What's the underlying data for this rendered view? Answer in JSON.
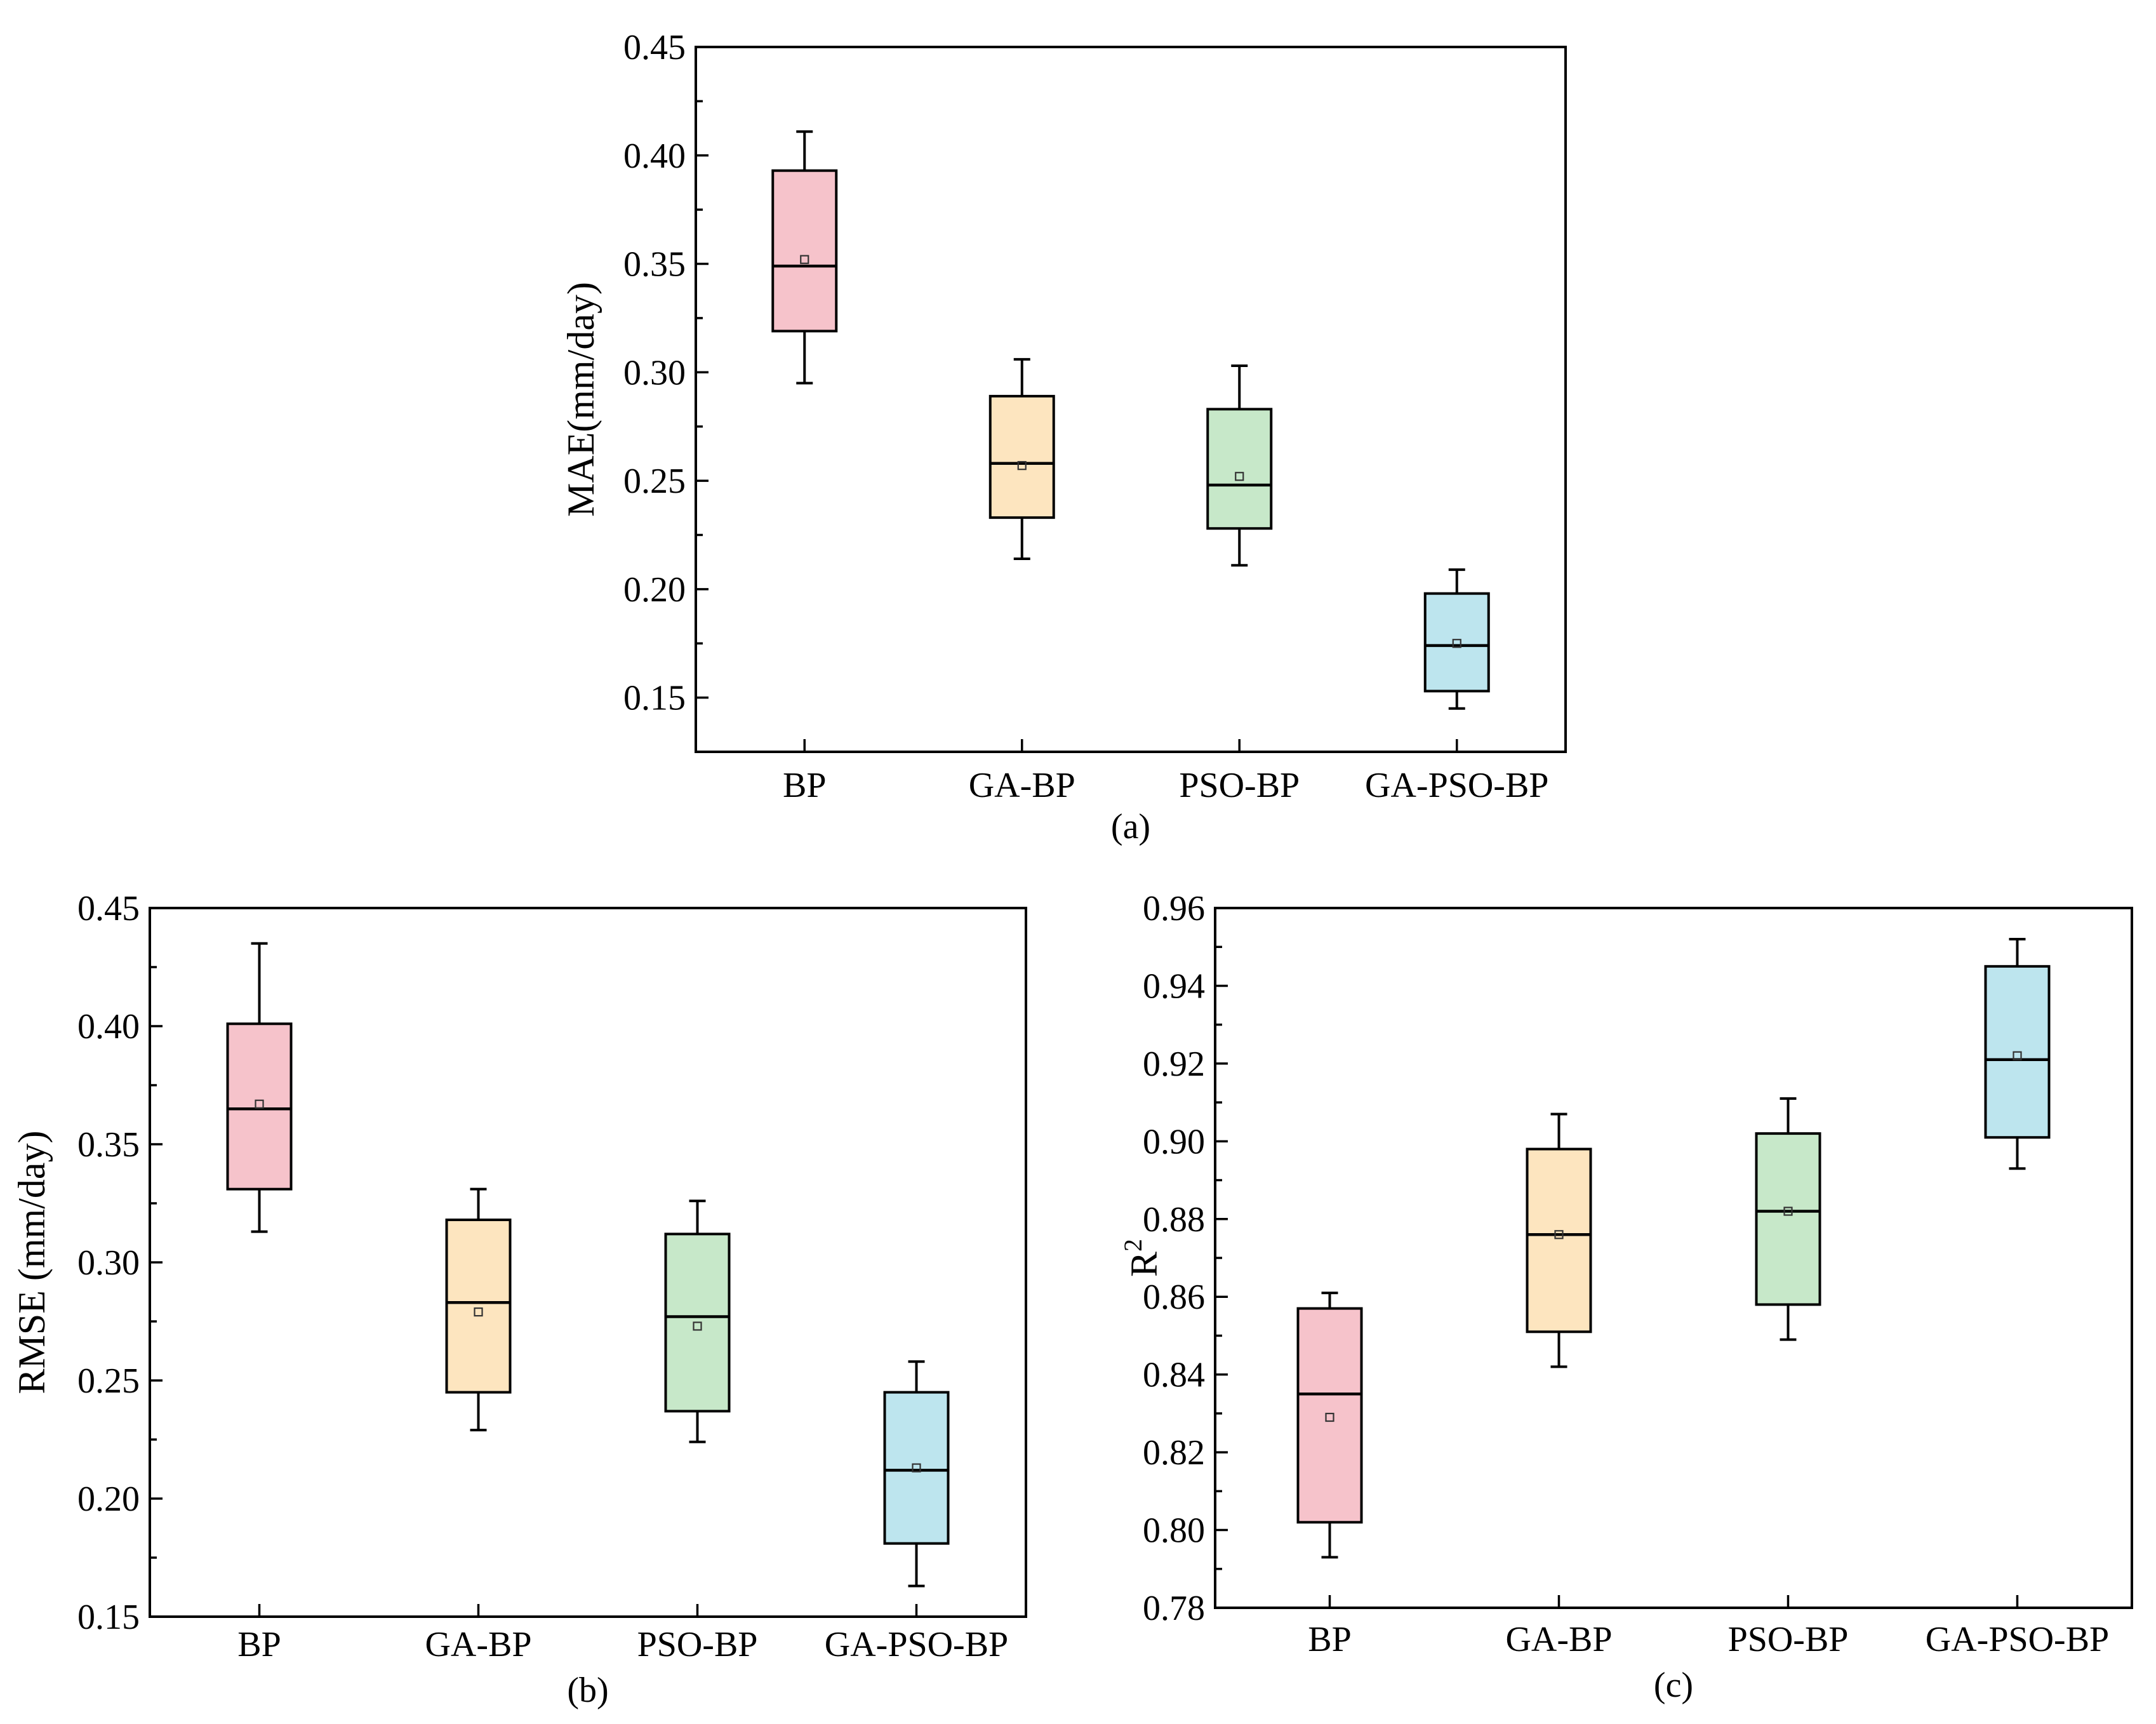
{
  "colors": {
    "BP": "#f6c3cb",
    "GA-BP": "#fde5bf",
    "PSO-BP": "#c7e8c9",
    "GA-PSO-BP": "#bde5ee"
  },
  "chart_data": [
    {
      "type": "box",
      "caption": "(a)",
      "ylabel": "MAE(mm/day)",
      "ylim": [
        0.125,
        0.45
      ],
      "yticks": [
        0.15,
        0.2,
        0.25,
        0.3,
        0.35,
        0.4,
        0.45
      ],
      "ytick_labels": [
        "0.15",
        "0.20",
        "0.25",
        "0.30",
        "0.35",
        "0.40",
        "0.45"
      ],
      "categories": [
        "BP",
        "GA-BP",
        "PSO-BP",
        "GA-PSO-BP"
      ],
      "boxes": [
        {
          "whisker_low": 0.295,
          "q1": 0.319,
          "median": 0.349,
          "mean": 0.352,
          "q3": 0.393,
          "whisker_high": 0.411
        },
        {
          "whisker_low": 0.214,
          "q1": 0.233,
          "median": 0.258,
          "mean": 0.257,
          "q3": 0.289,
          "whisker_high": 0.306
        },
        {
          "whisker_low": 0.211,
          "q1": 0.228,
          "median": 0.248,
          "mean": 0.252,
          "q3": 0.283,
          "whisker_high": 0.303
        },
        {
          "whisker_low": 0.145,
          "q1": 0.153,
          "median": 0.174,
          "mean": 0.175,
          "q3": 0.198,
          "whisker_high": 0.209
        }
      ]
    },
    {
      "type": "box",
      "caption": "(b)",
      "ylabel": "RMSE (mm/day)",
      "ylim": [
        0.15,
        0.45
      ],
      "yticks": [
        0.15,
        0.2,
        0.25,
        0.3,
        0.35,
        0.4,
        0.45
      ],
      "ytick_labels": [
        "0.15",
        "0.20",
        "0.25",
        "0.30",
        "0.35",
        "0.40",
        "0.45"
      ],
      "categories": [
        "BP",
        "GA-BP",
        "PSO-BP",
        "GA-PSO-BP"
      ],
      "boxes": [
        {
          "whisker_low": 0.313,
          "q1": 0.331,
          "median": 0.365,
          "mean": 0.367,
          "q3": 0.401,
          "whisker_high": 0.435
        },
        {
          "whisker_low": 0.229,
          "q1": 0.245,
          "median": 0.283,
          "mean": 0.279,
          "q3": 0.318,
          "whisker_high": 0.331
        },
        {
          "whisker_low": 0.224,
          "q1": 0.237,
          "median": 0.277,
          "mean": 0.273,
          "q3": 0.312,
          "whisker_high": 0.326
        },
        {
          "whisker_low": 0.163,
          "q1": 0.181,
          "median": 0.212,
          "mean": 0.213,
          "q3": 0.245,
          "whisker_high": 0.258
        }
      ]
    },
    {
      "type": "box",
      "caption": "(c)",
      "ylabel": "R",
      "ylabel_sup": "2",
      "ylim": [
        0.78,
        0.96
      ],
      "yticks": [
        0.78,
        0.8,
        0.82,
        0.84,
        0.86,
        0.88,
        0.9,
        0.92,
        0.94,
        0.96
      ],
      "ytick_labels": [
        "0.78",
        "0.80",
        "0.82",
        "0.84",
        "0.86",
        "0.88",
        "0.90",
        "0.92",
        "0.94",
        "0.96"
      ],
      "categories": [
        "BP",
        "GA-BP",
        "PSO-BP",
        "GA-PSO-BP"
      ],
      "boxes": [
        {
          "whisker_low": 0.793,
          "q1": 0.802,
          "median": 0.835,
          "mean": 0.829,
          "q3": 0.857,
          "whisker_high": 0.861
        },
        {
          "whisker_low": 0.842,
          "q1": 0.851,
          "median": 0.876,
          "mean": 0.876,
          "q3": 0.898,
          "whisker_high": 0.907
        },
        {
          "whisker_low": 0.849,
          "q1": 0.858,
          "median": 0.882,
          "mean": 0.882,
          "q3": 0.902,
          "whisker_high": 0.911
        },
        {
          "whisker_low": 0.893,
          "q1": 0.901,
          "median": 0.921,
          "mean": 0.922,
          "q3": 0.945,
          "whisker_high": 0.952
        }
      ]
    }
  ]
}
